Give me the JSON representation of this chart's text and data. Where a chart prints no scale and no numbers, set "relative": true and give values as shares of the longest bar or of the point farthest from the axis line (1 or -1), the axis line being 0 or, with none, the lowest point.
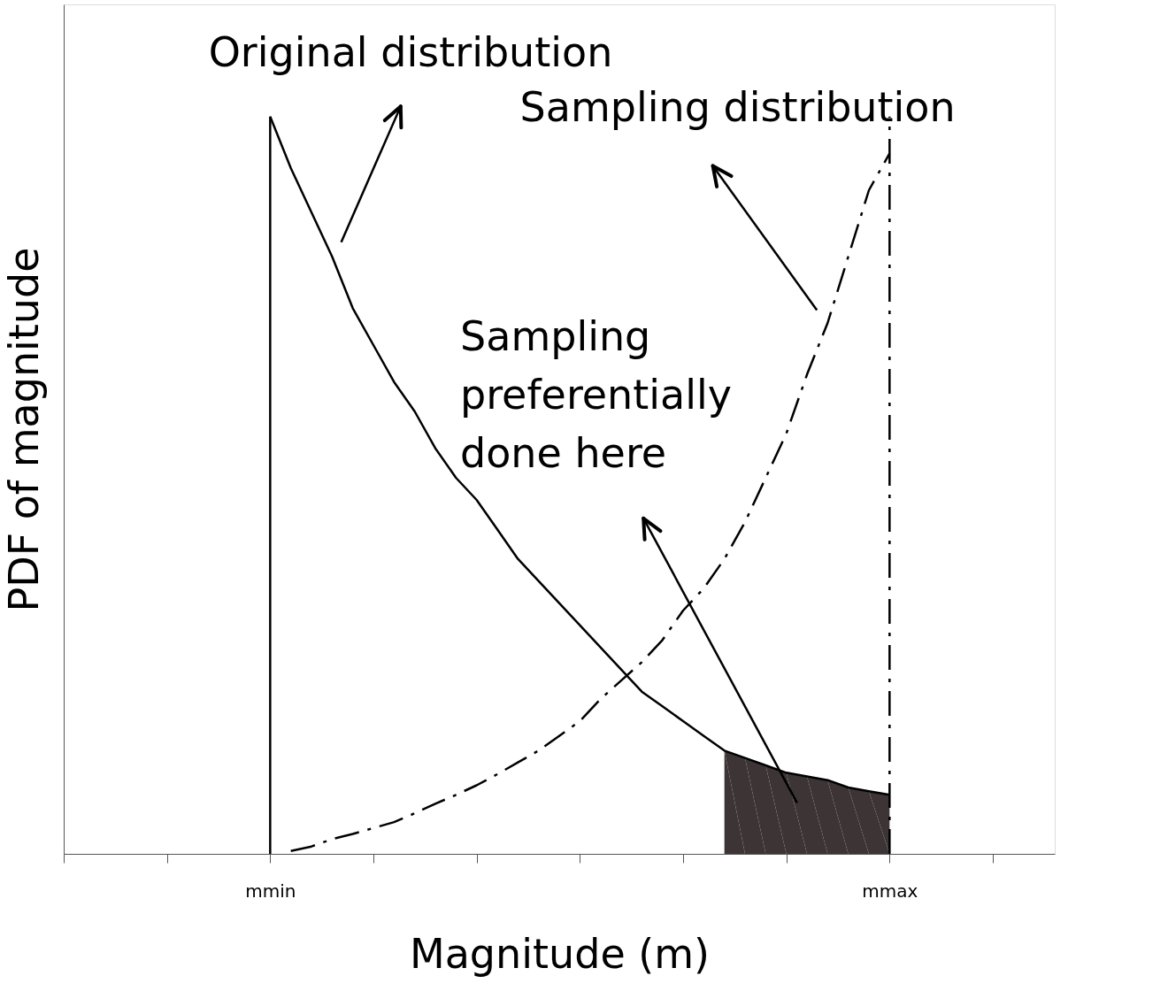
{
  "chart_data": {
    "type": "line",
    "relative": true,
    "xlabel": "Magnitude (m)",
    "ylabel": "PDF of magnitude",
    "categories": [
      null,
      null,
      null,
      null,
      null,
      null,
      null,
      null,
      null,
      null,
      "mmin",
      null,
      null,
      null,
      null,
      null,
      null,
      null,
      null,
      null,
      null,
      null,
      null,
      null,
      null,
      null,
      null,
      null,
      null,
      null,
      null,
      null,
      null,
      null,
      null,
      null,
      null,
      null,
      null,
      null,
      "mmax",
      null,
      null,
      null,
      null,
      null,
      null,
      null,
      null
    ],
    "grid": false,
    "series": [
      {
        "type": "area",
        "color": "#3d3535",
        "values": [
          null,
          null,
          null,
          null,
          null,
          null,
          null,
          null,
          null,
          null,
          null,
          null,
          null,
          null,
          null,
          null,
          null,
          null,
          null,
          null,
          null,
          null,
          null,
          null,
          null,
          null,
          null,
          null,
          null,
          null,
          null,
          null,
          0.14,
          0.13,
          0.12,
          0.11,
          0.105,
          0.1,
          0.09,
          0.085,
          0.08,
          null,
          null,
          null,
          null,
          null,
          null,
          null,
          null
        ]
      },
      {
        "line_style": "solid",
        "color": "#000000",
        "values": [
          null,
          null,
          null,
          null,
          null,
          null,
          null,
          null,
          null,
          null,
          1,
          0.93,
          0.87,
          0.81,
          0.74,
          0.69,
          0.64,
          0.6,
          0.55,
          0.51,
          0.48,
          0.44,
          0.4,
          0.37,
          0.34,
          0.31,
          0.28,
          0.25,
          0.22,
          0.2,
          0.18,
          0.16,
          0.14,
          0.13,
          0.12,
          0.11,
          0.105,
          0.1,
          0.09,
          0.085,
          0.08,
          null,
          null,
          null,
          null,
          null,
          null,
          null,
          null
        ]
      },
      {
        "type": "line",
        "line_style": "dashed",
        "color": "#000000",
        "values": [
          null,
          null,
          null,
          null,
          null,
          null,
          null,
          null,
          null,
          null,
          null,
          0.004,
          0.01,
          0.02,
          0.027,
          0.035,
          0.043,
          0.055,
          0.068,
          0.08,
          0.093,
          0.108,
          0.124,
          0.14,
          0.16,
          0.18,
          0.21,
          0.235,
          0.26,
          0.29,
          0.33,
          0.36,
          0.4,
          0.45,
          0.51,
          0.57,
          0.65,
          0.72,
          0.81,
          0.9,
          0.95,
          null,
          null,
          null,
          null,
          null,
          null,
          null,
          null
        ]
      }
    ],
    "ref_lines": [
      {
        "axis": "x",
        "value": "mmin",
        "line_style": "solid",
        "color": "#000000"
      },
      {
        "axis": "x",
        "value": "mmax",
        "line_style": "dashed",
        "color": "#000000"
      }
    ],
    "annotations": [
      "Original distribution",
      "Sampling distribution",
      "Sampling\npreferentially\ndone here"
    ]
  }
}
